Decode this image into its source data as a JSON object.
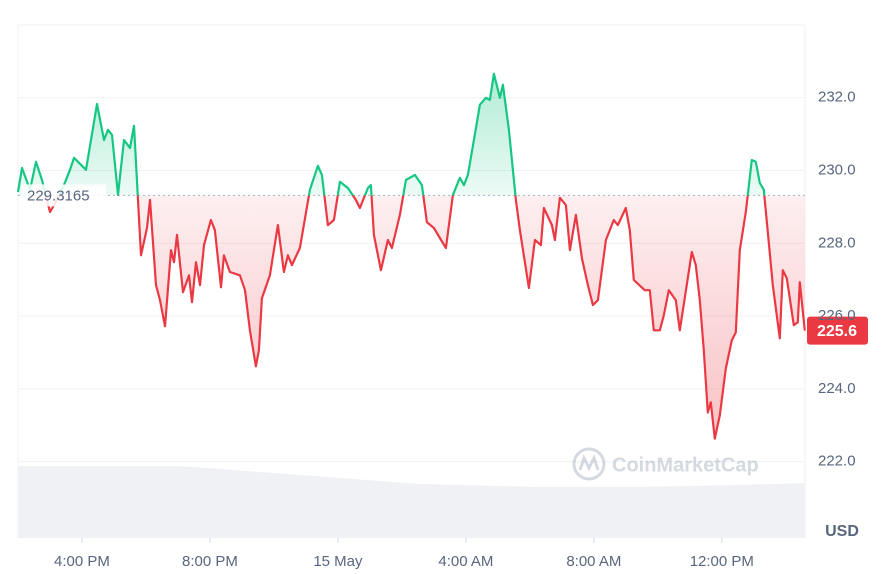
{
  "chart_data": {
    "type": "line",
    "x": [
      14.0,
      14.125,
      14.375,
      14.5625,
      14.75,
      15.0,
      15.3125,
      15.625,
      15.75,
      16.125,
      16.469,
      16.6875,
      16.8125,
      16.9375,
      17.125,
      17.3125,
      17.5,
      17.625,
      17.75,
      17.844,
      18.031,
      18.125,
      18.3125,
      18.4375,
      18.594,
      18.781,
      18.875,
      18.969,
      19.156,
      19.344,
      19.4375,
      19.5625,
      19.6875,
      19.8125,
      20.031,
      20.156,
      20.344,
      20.4375,
      20.625,
      20.9375,
      21.094,
      21.25,
      21.4375,
      21.531,
      21.625,
      21.875,
      22.125,
      22.3125,
      22.4375,
      22.5625,
      22.8125,
      23.125,
      23.375,
      23.5,
      23.6875,
      23.875,
      24.0625,
      24.3125,
      24.5625,
      24.6875,
      24.9375,
      25.031,
      25.125,
      25.344,
      25.5625,
      25.6875,
      25.9375,
      26.125,
      26.406,
      26.625,
      26.781,
      27.0,
      27.375,
      27.594,
      27.8125,
      27.9375,
      28.0625,
      28.25,
      28.4375,
      28.625,
      28.75,
      28.875,
      29.0625,
      29.156,
      29.344,
      29.5625,
      29.6875,
      29.969,
      30.156,
      30.344,
      30.4375,
      30.6875,
      30.781,
      30.9375,
      31.125,
      31.25,
      31.4375,
      31.625,
      31.8125,
      31.969,
      32.125,
      32.375,
      32.625,
      32.75,
      33.0,
      33.125,
      33.25,
      33.594,
      33.75,
      33.875,
      34.0625,
      34.1875,
      34.344,
      34.5625,
      34.6875,
      34.9375,
      35.0625,
      35.1875,
      35.3125,
      35.4375,
      35.5625,
      35.656,
      35.781,
      35.9375,
      36.125,
      36.3125,
      36.4375,
      36.5625,
      36.75,
      36.9375,
      37.0625,
      37.1875,
      37.3125,
      37.4375,
      37.594,
      37.8125,
      37.906,
      38.031,
      38.25,
      38.375,
      38.4375,
      38.594
    ],
    "values": [
      229.41,
      230.07,
      229.47,
      230.24,
      229.74,
      228.86,
      229.33,
      230.02,
      230.35,
      230.02,
      231.83,
      230.84,
      231.12,
      230.98,
      229.33,
      230.84,
      230.62,
      231.23,
      229.19,
      227.67,
      228.42,
      229.19,
      226.85,
      226.44,
      225.72,
      227.81,
      227.48,
      228.23,
      226.66,
      227.12,
      226.38,
      227.48,
      226.85,
      227.95,
      228.64,
      228.36,
      226.79,
      227.67,
      227.21,
      227.12,
      226.71,
      225.61,
      224.62,
      225.06,
      226.49,
      227.12,
      228.5,
      227.21,
      227.67,
      227.4,
      227.87,
      229.47,
      230.13,
      229.88,
      228.5,
      228.64,
      229.69,
      229.52,
      229.19,
      228.97,
      229.52,
      229.6,
      228.23,
      227.26,
      228.09,
      227.87,
      228.78,
      229.74,
      229.88,
      229.6,
      228.58,
      228.42,
      227.87,
      229.33,
      229.8,
      229.6,
      229.88,
      230.84,
      231.81,
      232.0,
      231.94,
      232.66,
      232.0,
      232.36,
      231.12,
      229.19,
      228.36,
      226.77,
      228.09,
      227.95,
      228.97,
      228.5,
      228.09,
      229.25,
      229.05,
      227.81,
      228.78,
      227.59,
      226.85,
      226.3,
      226.44,
      228.09,
      228.64,
      228.5,
      228.97,
      228.36,
      226.99,
      226.71,
      226.71,
      225.61,
      225.61,
      226.02,
      226.71,
      226.44,
      225.61,
      227.04,
      227.76,
      227.4,
      226.44,
      225.06,
      223.35,
      223.63,
      222.63,
      223.27,
      224.56,
      225.33,
      225.55,
      227.81,
      228.86,
      230.29,
      230.24,
      229.66,
      229.47,
      228.31,
      226.85,
      225.39,
      227.26,
      227.04,
      225.75,
      225.83,
      226.93,
      225.6
    ],
    "xlim": [
      14,
      38.6
    ],
    "xticks": [
      {
        "value": 16,
        "label": "4:00 PM"
      },
      {
        "value": 20,
        "label": "8:00 PM"
      },
      {
        "value": 24,
        "label": "15 May"
      },
      {
        "value": 28,
        "label": "4:00 AM"
      },
      {
        "value": 32,
        "label": "8:00 AM"
      },
      {
        "value": 36,
        "label": "12:00 PM"
      }
    ],
    "ylim": [
      219.9,
      234.0
    ],
    "yticks": [
      {
        "value": 222,
        "label": "222.0"
      },
      {
        "value": 224,
        "label": "224.0"
      },
      {
        "value": 226,
        "label": "226.0"
      },
      {
        "value": 228,
        "label": "228.0"
      },
      {
        "value": 230,
        "label": "230.0"
      },
      {
        "value": 232,
        "label": "232.0"
      }
    ],
    "grid": true,
    "baseline": 229.3165,
    "current_price": 225.6,
    "above_color": "#16c784",
    "below_color": "#ea3943",
    "unit": "USD",
    "watermark": "CoinMarketCap"
  }
}
